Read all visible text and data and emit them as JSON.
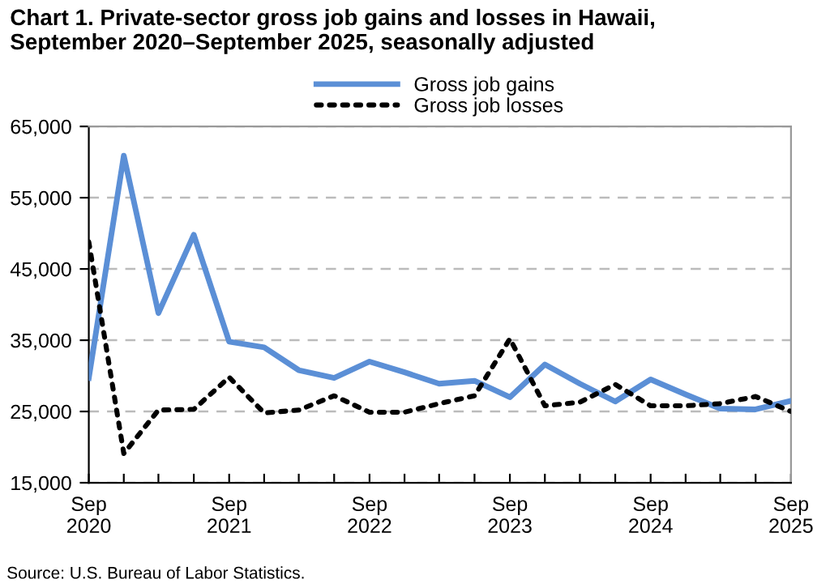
{
  "chart_data": {
    "type": "line",
    "title": "Chart 1. Private-sector gross job gains and losses in Hawaii,\nSeptember 2020–September 2025, seasonally adjusted",
    "x": [
      "2020-09",
      "2020-12",
      "2021-03",
      "2021-06",
      "2021-09",
      "2021-12",
      "2022-03",
      "2022-06",
      "2022-09",
      "2022-12",
      "2023-03",
      "2023-06",
      "2023-09",
      "2023-12",
      "2024-03",
      "2024-06",
      "2024-09",
      "2024-12",
      "2025-03",
      "2025-06",
      "2025-09"
    ],
    "series": [
      {
        "name": "Gross job gains",
        "color": "#5b8fd6",
        "line_style": "solid",
        "values": [
          29700,
          60900,
          38800,
          49800,
          34800,
          34000,
          30800,
          29700,
          32000,
          30500,
          28900,
          29300,
          27000,
          31600,
          28900,
          26400,
          29500,
          27400,
          25400,
          25300,
          26500
        ]
      },
      {
        "name": "Gross job losses",
        "color": "#000000",
        "line_style": "dotted",
        "values": [
          48800,
          19100,
          25200,
          25300,
          29800,
          24800,
          25200,
          27200,
          24900,
          24900,
          26100,
          27200,
          35200,
          25800,
          26300,
          28800,
          25800,
          25800,
          26100,
          27100,
          25000
        ]
      }
    ],
    "xlim": [
      "2020-09",
      "2025-09"
    ],
    "xticks": [
      {
        "value": "2020-09",
        "label": "Sep\n2020"
      },
      {
        "value": "2020-12",
        "label": null
      },
      {
        "value": "2021-03",
        "label": null
      },
      {
        "value": "2021-06",
        "label": null
      },
      {
        "value": "2021-09",
        "label": "Sep\n2021"
      },
      {
        "value": "2021-12",
        "label": null
      },
      {
        "value": "2022-03",
        "label": null
      },
      {
        "value": "2022-06",
        "label": null
      },
      {
        "value": "2022-09",
        "label": "Sep\n2022"
      },
      {
        "value": "2022-12",
        "label": null
      },
      {
        "value": "2023-03",
        "label": null
      },
      {
        "value": "2023-06",
        "label": null
      },
      {
        "value": "2023-09",
        "label": "Sep\n2023"
      },
      {
        "value": "2023-12",
        "label": null
      },
      {
        "value": "2024-03",
        "label": null
      },
      {
        "value": "2024-06",
        "label": null
      },
      {
        "value": "2024-09",
        "label": "Sep\n2024"
      },
      {
        "value": "2024-12",
        "label": null
      },
      {
        "value": "2025-03",
        "label": null
      },
      {
        "value": "2025-06",
        "label": null
      },
      {
        "value": "2025-09",
        "label": "Sep\n2025"
      }
    ],
    "ylim": [
      15000,
      65000
    ],
    "yticks": [
      {
        "value": 15000,
        "label": "15,000"
      },
      {
        "value": 25000,
        "label": "25,000"
      },
      {
        "value": 35000,
        "label": "35,000"
      },
      {
        "value": 45000,
        "label": "45,000"
      },
      {
        "value": 55000,
        "label": "55,000"
      },
      {
        "value": 65000,
        "label": "65,000"
      }
    ],
    "grid": "y",
    "legend": "top",
    "marker": "none",
    "annotations": [
      "Source: U.S. Bureau of Labor Statistics."
    ]
  }
}
